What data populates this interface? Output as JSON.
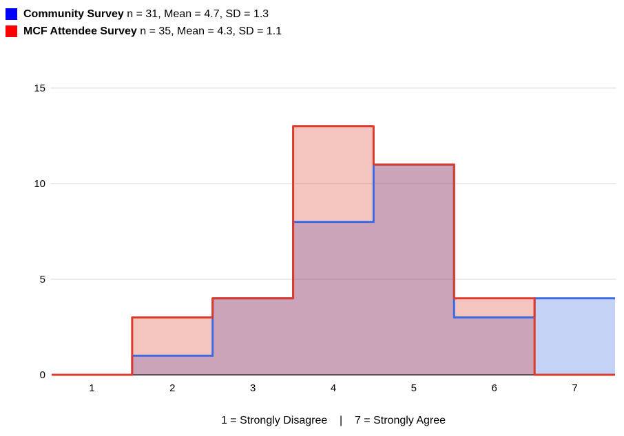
{
  "legend": {
    "items": [
      {
        "name": "Community Survey",
        "stats": "n = 31, Mean = 4.7, SD = 1.3",
        "swatch_color": "#0000FF"
      },
      {
        "name": "MCF Attendee Survey",
        "stats": "n = 35, Mean = 4.3, SD = 1.1",
        "swatch_color": "#FF0000"
      }
    ]
  },
  "caption": "1 = Strongly Disagree    |    7 = Strongly Agree",
  "chart_data": {
    "type": "area",
    "subtype": "step-histogram",
    "title": "",
    "xlabel": "1 = Strongly Disagree | 7 = Strongly Agree",
    "ylabel": "",
    "categories": [
      1,
      2,
      3,
      4,
      5,
      6,
      7
    ],
    "series": [
      {
        "name": "Community Survey",
        "values": [
          0,
          1,
          4,
          8,
          11,
          3,
          4
        ],
        "line_color": "#3D6AE1",
        "fill_color": "#3D6AE1",
        "fill_opacity": 0.3
      },
      {
        "name": "MCF Attendee Survey",
        "values": [
          0,
          3,
          4,
          13,
          11,
          4,
          0
        ],
        "line_color": "#DB3B2B",
        "fill_color": "#DB3B2B",
        "fill_opacity": 0.3
      }
    ],
    "y_ticks": [
      0,
      5,
      10,
      15
    ],
    "ylim": [
      0,
      15
    ],
    "grid": true,
    "legend_position": "top-left",
    "gridline_color": "#D9D9D9",
    "axis_line_color": "#424242",
    "tick_label_color": "#000000",
    "tick_font_size": 15
  }
}
